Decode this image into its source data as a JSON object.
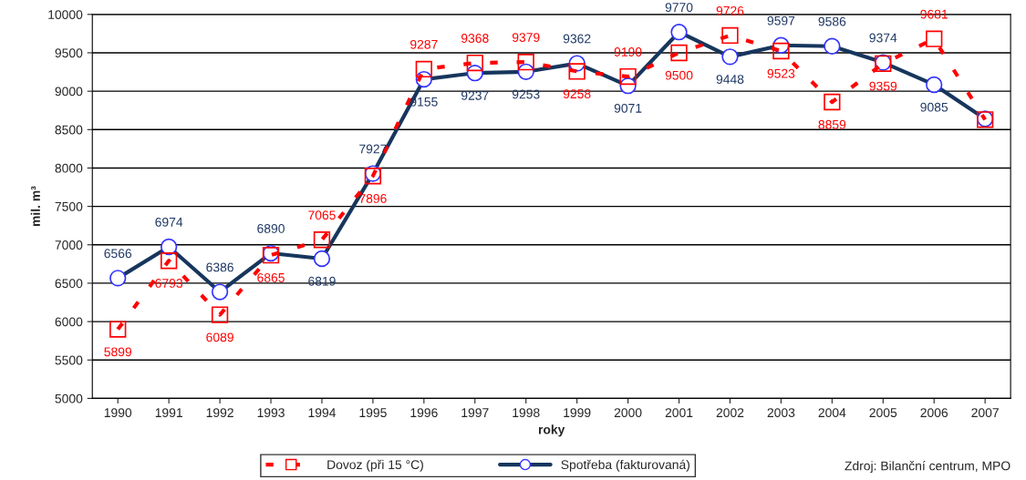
{
  "chart_data": {
    "type": "line",
    "xlabel": "roky",
    "ylabel": "mil. m³",
    "categories": [
      "1990",
      "1991",
      "1992",
      "1993",
      "1994",
      "1995",
      "1996",
      "1997",
      "1998",
      "1999",
      "2000",
      "2001",
      "2002",
      "2003",
      "2004",
      "2005",
      "2006",
      "2007"
    ],
    "series": [
      {
        "name": "Dovoz (při 15 °C)",
        "color": "#ff0000",
        "marker": "square",
        "line_style": "dashed",
        "values": [
          5899,
          6793,
          6089,
          6865,
          7065,
          7896,
          9287,
          9368,
          9379,
          9258,
          9190,
          9500,
          9726,
          9523,
          8859,
          9359,
          9681,
          8630
        ],
        "value_labels": [
          "5899",
          "6793",
          "6089",
          "6865",
          "7065",
          "7896",
          "9287",
          "9368",
          "9379",
          "9258",
          "9190",
          "9500",
          "9726",
          "9523",
          "8859",
          "9359",
          "9681",
          null
        ]
      },
      {
        "name": "Spotřeba (fakturovaná)",
        "color": "#17365d",
        "marker": "circle",
        "line_style": "solid",
        "values": [
          6566,
          6974,
          6386,
          6890,
          6819,
          7927,
          9155,
          9237,
          9253,
          9362,
          9071,
          9770,
          9448,
          9597,
          9586,
          9374,
          9085,
          8640
        ],
        "value_labels": [
          "6566",
          "6974",
          "6386",
          "6890",
          "6819",
          "7927",
          "9155",
          "9237",
          "9253",
          "9362",
          "9071",
          "9770",
          "9448",
          "9597",
          "9586",
          "9374",
          "9085",
          null
        ]
      }
    ],
    "ylim": [
      5000,
      10000
    ],
    "yticks": [
      5000,
      5500,
      6000,
      6500,
      7000,
      7500,
      8000,
      8500,
      9000,
      9500,
      10000
    ],
    "grid": "y",
    "legend": "bottom",
    "annotations": [
      "Zdroj: Bilanční centrum, MPO"
    ]
  }
}
